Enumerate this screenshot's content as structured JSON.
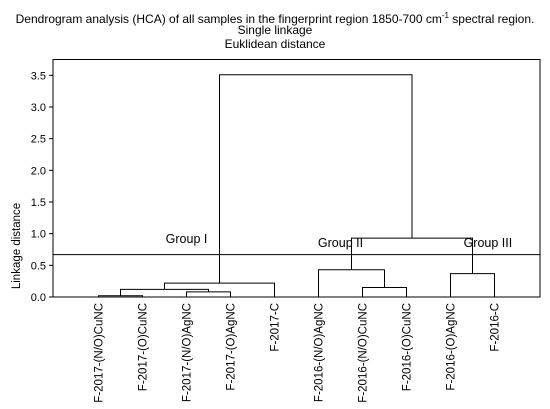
{
  "chart_data": {
    "type": "dendrogram",
    "title_prefix": "Dendrogram analysis (HCA)  of all samples in the fingerprint region 1850-700 cm",
    "title_sup": "-1",
    "title_suffix": " spectral region.",
    "subtitle1": "Single linkage",
    "subtitle2": "Euklidean distance",
    "ylabel": "Linkage distance",
    "ylim": [
      0,
      3.75
    ],
    "yticks": [
      "0.0",
      "0.5",
      "1.0",
      "1.5",
      "2.0",
      "2.5",
      "3.0",
      "3.5"
    ],
    "ytick_values": [
      0,
      0.5,
      1.0,
      1.5,
      2.0,
      2.5,
      3.0,
      3.5
    ],
    "leaves": [
      "F-2017-(N/O)CuNC",
      "F-2017-(O)CuNC",
      "F-2017-(N/O)AgNC",
      "F-2017-(O)AgNC",
      "F-2017-C",
      "F-2016-(N/O)AgNC",
      "F-2016-(N/O)CuNC",
      "F-2016-(O)CuNC",
      "F-2016-(O)AgNC",
      "F-2016-C"
    ],
    "merges": [
      {
        "left": "leaf:0",
        "right": "leaf:1",
        "height": 0.02
      },
      {
        "left": "leaf:2",
        "right": "leaf:3",
        "height": 0.08
      },
      {
        "left": "m:0",
        "right": "m:1",
        "height": 0.12
      },
      {
        "left": "m:2",
        "right": "leaf:4",
        "height": 0.22
      },
      {
        "left": "leaf:6",
        "right": "leaf:7",
        "height": 0.15
      },
      {
        "left": "leaf:5",
        "right": "m:4",
        "height": 0.43
      },
      {
        "left": "leaf:8",
        "right": "leaf:9",
        "height": 0.37
      },
      {
        "left": "m:5",
        "right": "m:6",
        "height": 0.93
      },
      {
        "left": "m:3",
        "right": "m:7",
        "height": 3.51
      }
    ],
    "cut_line": 0.67,
    "annotations": [
      {
        "text": "Group I",
        "x_leaf": 2.0,
        "y": 0.85
      },
      {
        "text": "Group II",
        "x_leaf": 5.5,
        "y": 0.79
      },
      {
        "text": "Group III",
        "x_leaf": 8.85,
        "y": 0.79
      }
    ],
    "grid": false,
    "colors": {
      "line": "#000000",
      "background": "#ffffff"
    }
  }
}
